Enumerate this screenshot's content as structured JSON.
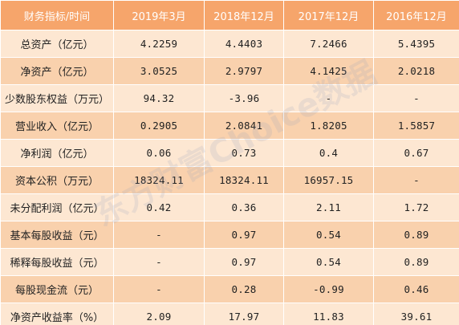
{
  "table": {
    "headers": [
      "财务指标/时间",
      "2019年3月",
      "2018年12月",
      "2017年12月",
      "2016年12月"
    ],
    "rows": [
      {
        "label": "总资产（亿元）",
        "values": [
          "4.2259",
          "4.4403",
          "7.2466",
          "5.4395"
        ]
      },
      {
        "label": "净资产（亿元）",
        "values": [
          "3.0525",
          "2.9797",
          "4.1425",
          "2.0218"
        ]
      },
      {
        "label": "少数股东权益（万元）",
        "values": [
          "94.32",
          "-3.96",
          "-",
          "-"
        ]
      },
      {
        "label": "营业收入（亿元）",
        "values": [
          "0.2905",
          "2.0841",
          "1.8205",
          "1.5857"
        ]
      },
      {
        "label": "净利润（亿元）",
        "values": [
          "0.06",
          "0.73",
          "0.4",
          "0.67"
        ]
      },
      {
        "label": "资本公积（万元）",
        "values": [
          "18324.11",
          "18324.11",
          "16957.15",
          "-"
        ]
      },
      {
        "label": "未分配利润（亿元）",
        "values": [
          "0.42",
          "0.36",
          "2.11",
          "1.72"
        ]
      },
      {
        "label": "基本每股收益（元）",
        "values": [
          "-",
          "0.97",
          "0.54",
          "0.89"
        ]
      },
      {
        "label": "稀释每股收益（元）",
        "values": [
          "-",
          "0.97",
          "0.54",
          "0.89"
        ]
      },
      {
        "label": "每股现金流（元）",
        "values": [
          "-",
          "0.28",
          "-0.99",
          "0.46"
        ]
      },
      {
        "label": "净资产收益率（%）",
        "values": [
          "2.09",
          "17.97",
          "11.83",
          "39.61"
        ]
      }
    ]
  },
  "watermark": "东方财富Choice数据",
  "colors": {
    "header_bg": "#f6a56b",
    "row_light": "#fde7d2",
    "row_dark": "#f9d1ad",
    "header_text": "#ffffff"
  }
}
